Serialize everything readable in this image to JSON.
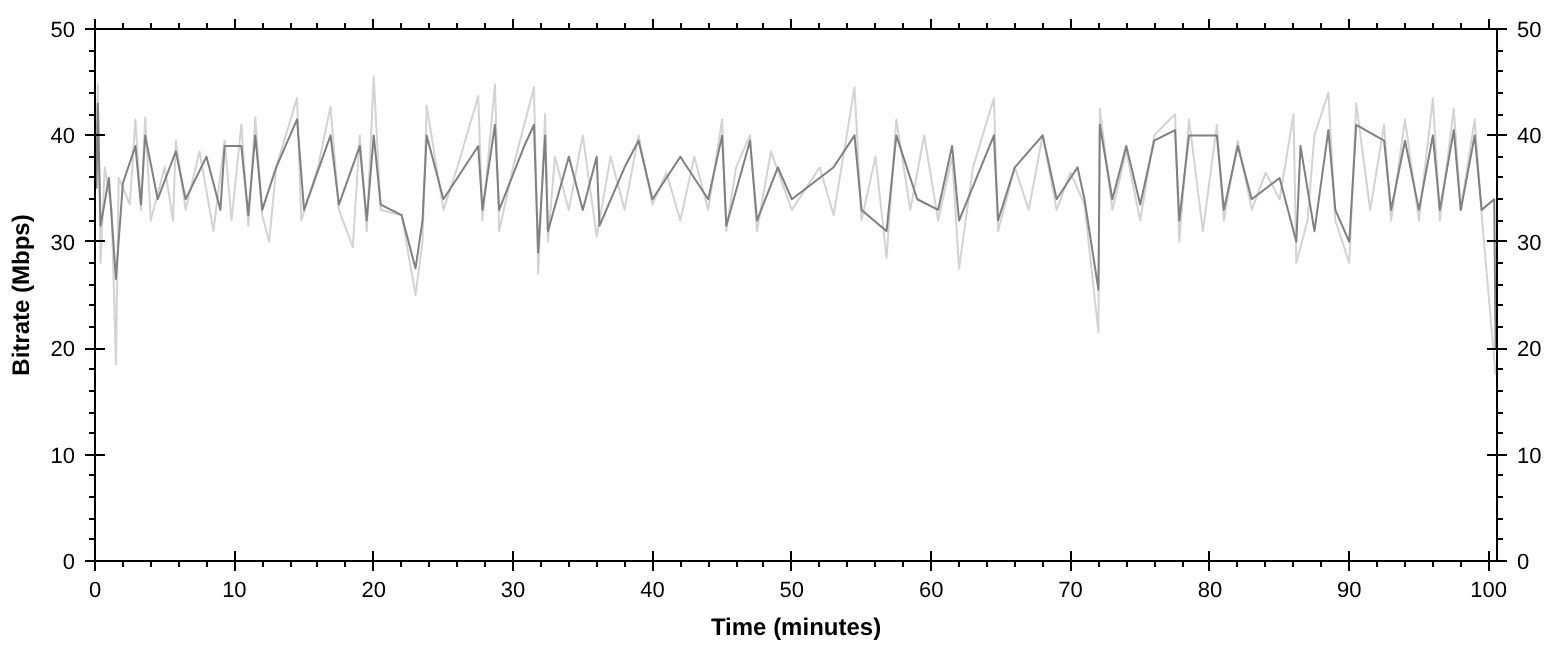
{
  "chart_data": {
    "type": "line",
    "xlabel": "Time (minutes)",
    "ylabel": "Bitrate (Mbps)",
    "xlim": [
      0,
      100.6
    ],
    "xticks": [
      0,
      10,
      20,
      30,
      40,
      50,
      60,
      70,
      80,
      90,
      100
    ],
    "ylim": [
      0,
      50
    ],
    "yticks": [
      0,
      10,
      20,
      30,
      40,
      50
    ],
    "y2lim": [
      0,
      50
    ],
    "y2ticks": [
      0,
      10,
      20,
      30,
      40,
      50
    ],
    "grid": false,
    "marker": "none",
    "line_style": "solid",
    "series": [
      {
        "color": "#d3d3d3",
        "x": [
          0.1,
          0.2,
          0.4,
          0.7,
          1.2,
          1.5,
          1.7,
          2.5,
          2.9,
          3.3,
          3.6,
          4,
          5,
          5.6,
          5.8,
          6.5,
          7.5,
          8.5,
          9.3,
          9.8,
          10.5,
          11,
          11.5,
          12,
          12.5,
          13,
          14.5,
          14.8,
          16,
          16.9,
          17.5,
          18.5,
          19,
          19.5,
          20,
          20.5,
          22,
          23,
          23.5,
          23.8,
          25,
          26,
          27.5,
          27.8,
          28.7,
          29,
          30,
          30.8,
          31.5,
          31.8,
          32.3,
          32.5,
          33,
          34,
          35,
          36,
          37,
          38,
          39,
          40,
          41,
          42,
          43,
          44,
          45,
          45.3,
          46,
          47,
          47.5,
          48.5,
          50,
          52,
          53,
          54.5,
          55,
          56,
          56.8,
          57.5,
          58.5,
          59.5,
          60.5,
          61.5,
          62,
          63,
          64.5,
          64.8,
          66,
          67,
          68,
          69,
          70,
          71,
          72,
          72.1,
          73,
          74,
          75,
          76,
          77.5,
          77.8,
          78.5,
          79.5,
          80.5,
          81,
          82,
          83,
          84,
          85,
          86,
          86.2,
          87,
          87.5,
          88.5,
          89,
          90,
          90.5,
          91.5,
          92.5,
          93,
          94,
          95,
          96,
          96.5,
          97.5,
          98,
          99,
          99.5,
          100.5
        ],
        "values": [
          35,
          44.8,
          28,
          37,
          33,
          18.5,
          36,
          33.5,
          41.5,
          33,
          41.7,
          32,
          37,
          32,
          39.5,
          33,
          38.5,
          31,
          39.5,
          32,
          41,
          31.5,
          41.7,
          32.5,
          30,
          37,
          43.5,
          32,
          37,
          42.7,
          33,
          29.5,
          40,
          31,
          45.5,
          33,
          32.5,
          25,
          30,
          42.8,
          33,
          37,
          43.7,
          32,
          44.8,
          31,
          37,
          41,
          44.5,
          27,
          42,
          30,
          38,
          33,
          40,
          30.5,
          38,
          33,
          40,
          33.5,
          36.5,
          32,
          38,
          33,
          41.5,
          31,
          37,
          40,
          31,
          38.5,
          33,
          37,
          32.5,
          44.5,
          32,
          38,
          28.5,
          41.5,
          33,
          40,
          32,
          38,
          27.5,
          37,
          43.5,
          31,
          37,
          33,
          40,
          33,
          36.5,
          33.5,
          21.5,
          42.5,
          33,
          38.5,
          32,
          40,
          42,
          30,
          41.5,
          31,
          41,
          32,
          39.5,
          33,
          36.5,
          34,
          42,
          28,
          32,
          40,
          44,
          32,
          28,
          43,
          33,
          41,
          32,
          41.5,
          32,
          43.5,
          32,
          42.5,
          33,
          41.5,
          32.5,
          17.5
        ]
      },
      {
        "color": "#808080",
        "x": [
          0.1,
          0.2,
          0.4,
          1,
          1.5,
          2,
          2.9,
          3.3,
          3.6,
          4.5,
          5.8,
          6.5,
          8,
          9,
          9.3,
          10.5,
          11,
          11.5,
          12,
          13,
          14.5,
          15,
          16.9,
          17.5,
          19,
          19.5,
          20,
          20.5,
          22,
          23,
          23.5,
          23.8,
          25,
          27.5,
          27.8,
          28.7,
          29,
          30.8,
          31.5,
          31.8,
          32.3,
          32.5,
          34,
          35,
          36,
          36.2,
          38,
          39,
          40,
          42,
          44,
          45,
          45.3,
          47,
          47.5,
          49,
          50,
          53,
          54.5,
          55,
          56.8,
          57.5,
          59,
          60.5,
          61.5,
          62,
          64.5,
          64.8,
          66,
          68,
          69,
          70.5,
          71,
          72,
          72.1,
          73,
          74,
          75,
          76,
          77.5,
          77.8,
          78.5,
          80.5,
          81,
          82,
          83,
          85,
          86.2,
          86.5,
          87.5,
          88.5,
          89,
          90,
          90.5,
          92.5,
          93,
          94,
          95,
          96,
          96.5,
          97.5,
          98,
          99,
          99.5,
          100.4,
          100.5
        ],
        "values": [
          35,
          43,
          31.5,
          36,
          26.5,
          35.5,
          39,
          33.5,
          40,
          34,
          38.5,
          34,
          38,
          33,
          39,
          39,
          32.5,
          40,
          33,
          37,
          41.5,
          33,
          40,
          33.5,
          39,
          32,
          40,
          33.5,
          32.5,
          27.5,
          32,
          40,
          34,
          39,
          33,
          41,
          33,
          39,
          41,
          29,
          40,
          31,
          38,
          33,
          38,
          31.5,
          37,
          39.5,
          34,
          38,
          34,
          40,
          31.5,
          39.5,
          32,
          37,
          34,
          37,
          40,
          33,
          31,
          40,
          34,
          33,
          39,
          32,
          40,
          32,
          37,
          40,
          34,
          37,
          34,
          25.5,
          41,
          34,
          39,
          33.5,
          39.5,
          40.5,
          32,
          40,
          40,
          33,
          39,
          34,
          36,
          30,
          39,
          31,
          40.5,
          33,
          30,
          41,
          39.5,
          33,
          39.5,
          33,
          40,
          33,
          40.5,
          33,
          40,
          33,
          34,
          20
        ]
      }
    ]
  }
}
